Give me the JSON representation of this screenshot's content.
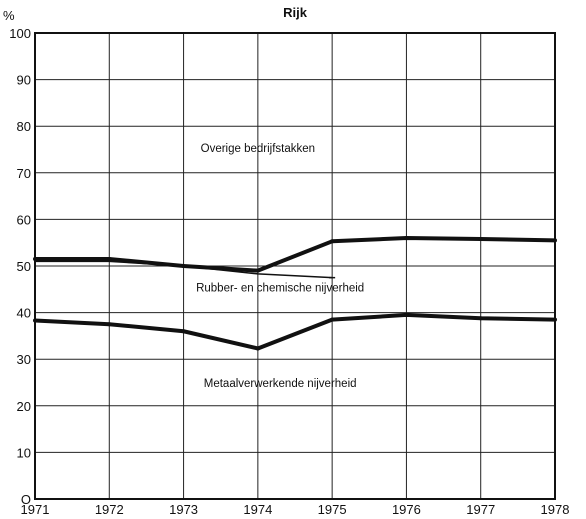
{
  "chart_data": {
    "type": "area",
    "title": "Rijk",
    "ylabel": "%",
    "xlabel": "",
    "x": [
      1971,
      1972,
      1973,
      1974,
      1975,
      1976,
      1977,
      1978
    ],
    "xlim": [
      1971,
      1978
    ],
    "ylim": [
      0,
      100
    ],
    "yticks": [
      0,
      10,
      20,
      30,
      40,
      50,
      60,
      70,
      80,
      90,
      100
    ],
    "ytick_labels": [
      "O",
      "10",
      "20",
      "30",
      "40",
      "50",
      "60",
      "70",
      "80",
      "90",
      "100"
    ],
    "xtick_labels": [
      "1971",
      "1972",
      "1973",
      "1974",
      "1975",
      "1976",
      "1977",
      "1978"
    ],
    "grid": true,
    "stacked": true,
    "boundaries": [
      {
        "values": [
          38.3,
          37.5,
          36.0,
          32.3,
          38.5,
          39.5,
          38.8,
          38.5
        ]
      },
      {
        "values": [
          51.5,
          51.5,
          50.0,
          49.0,
          55.3,
          56.0,
          55.8,
          55.5
        ]
      }
    ],
    "secondary_line": {
      "values": [
        51.0,
        51.0,
        50.0,
        48.3,
        47.5
      ]
    },
    "annotations": [
      {
        "text": "Overige bedrijfstakken",
        "x": 1974.0,
        "y": 74.5
      },
      {
        "text": "Rubber- en chemische nijverheid",
        "x": 1974.3,
        "y": 44.5
      },
      {
        "text": "Metaalverwerkende nijverheid",
        "x": 1974.3,
        "y": 24.0
      }
    ]
  }
}
